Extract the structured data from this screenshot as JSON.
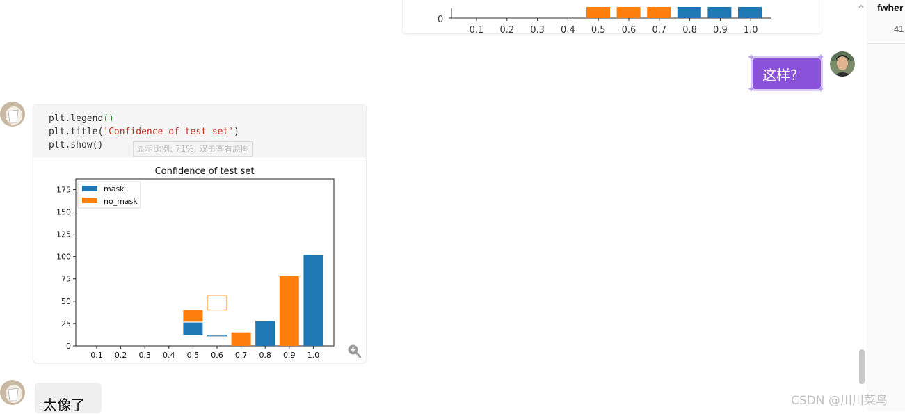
{
  "top_chart": {
    "y_tick": "0",
    "x_ticks": [
      "0.1",
      "0.2",
      "0.3",
      "0.4",
      "0.5",
      "0.6",
      "0.7",
      "0.8",
      "0.9",
      "1.0"
    ],
    "bar_colors": [
      "#ff7f0e",
      "#ff7f0e",
      "#ff7f0e",
      "#1f77b4",
      "#1f77b4",
      "#1f77b4"
    ]
  },
  "right_panel": {
    "name": "fwher",
    "count": "41"
  },
  "my_message": {
    "text": "这样?"
  },
  "code": {
    "line1_a": "plt.legend",
    "line1_b": "()",
    "line2_a": "plt.title(",
    "line2_b": "'Confidence of test set'",
    "line2_c": ")",
    "line3": "plt.show()"
  },
  "image_tooltip": "显示比例: 71%, 双击查看原图",
  "last_message": {
    "text": "太像了"
  },
  "watermark": "CSDN @川川菜鸟",
  "chart_data": {
    "type": "bar",
    "title": "Confidence of test set",
    "xlabel": "",
    "ylabel": "",
    "ylim": [
      0,
      187
    ],
    "x_ticks": [
      "0.1",
      "0.2",
      "0.3",
      "0.4",
      "0.5",
      "0.6",
      "0.7",
      "0.8",
      "0.9",
      "1.0"
    ],
    "y_ticks": [
      0,
      25,
      50,
      75,
      100,
      125,
      150,
      175
    ],
    "legend_position": "top-left",
    "series": [
      {
        "name": "mask",
        "color": "#1f77b4",
        "bars": [
          {
            "x": 0.5,
            "bottom": 12,
            "value": 26
          },
          {
            "x": 0.6,
            "bottom": 11,
            "value": 12
          },
          {
            "x": 0.8,
            "bottom": 0,
            "value": 28
          },
          {
            "x": 1.0,
            "bottom": 0,
            "value": 102
          }
        ]
      },
      {
        "name": "no_mask",
        "color": "#ff7f0e",
        "bars": [
          {
            "x": 0.5,
            "bottom": 27,
            "value": 40
          },
          {
            "x": 0.6,
            "bottom": 40,
            "value": 56
          },
          {
            "x": 0.7,
            "bottom": 0,
            "value": 15
          },
          {
            "x": 0.9,
            "bottom": 0,
            "value": 78
          }
        ]
      }
    ]
  }
}
